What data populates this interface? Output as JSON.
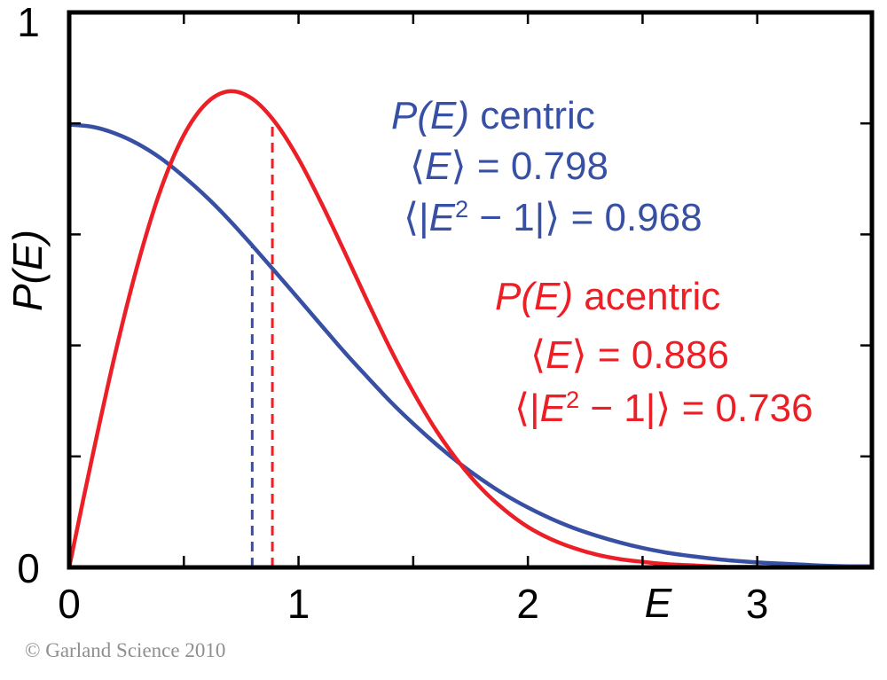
{
  "figure": {
    "copyright": "© Garland Science 2010",
    "copyright_color": "#8f8f8f",
    "background_color": "#ffffff",
    "frame_color": "#000000"
  },
  "chart_data": {
    "type": "line",
    "title": "",
    "xlabel": "E",
    "ylabel": "P(E)",
    "xlim": [
      0,
      3.5
    ],
    "ylim": [
      0,
      1
    ],
    "grid": false,
    "legend": "none (inline colored annotations)",
    "x_tick_labels": [
      {
        "value": 0,
        "label": "0"
      },
      {
        "value": 1,
        "label": "1"
      },
      {
        "value": 2,
        "label": "2"
      },
      {
        "value": 3,
        "label": "3"
      }
    ],
    "y_tick_labels": [
      {
        "value": 0,
        "label": "0"
      },
      {
        "value": 1,
        "label": "1"
      }
    ],
    "x_minor_ticks": [
      0.5,
      1.0,
      1.5,
      2.0,
      2.5,
      3.0
    ],
    "y_minor_ticks": [
      0.2,
      0.4,
      0.6,
      0.8
    ],
    "x": [
      0,
      0.1,
      0.2,
      0.3,
      0.4,
      0.5,
      0.6,
      0.7,
      0.8,
      0.9,
      1.0,
      1.1,
      1.2,
      1.3,
      1.4,
      1.5,
      1.6,
      1.7,
      1.8,
      1.9,
      2.0,
      2.1,
      2.2,
      2.3,
      2.4,
      2.5,
      2.6,
      2.7,
      2.8,
      2.9,
      3.0,
      3.1,
      3.2,
      3.3,
      3.4,
      3.5
    ],
    "series": [
      {
        "name": "P(E) centric",
        "color": "#3850a3",
        "values": [
          0.798,
          0.794,
          0.782,
          0.763,
          0.737,
          0.704,
          0.667,
          0.625,
          0.579,
          0.532,
          0.484,
          0.436,
          0.388,
          0.343,
          0.299,
          0.259,
          0.222,
          0.188,
          0.158,
          0.131,
          0.108,
          0.088,
          0.071,
          0.057,
          0.045,
          0.035,
          0.027,
          0.021,
          0.016,
          0.012,
          0.009,
          0.007,
          0.005,
          0.003,
          0.002,
          0.002
        ],
        "mean_E": 0.798,
        "mean_abs_E2_minus_1": 0.968
      },
      {
        "name": "P(E) acentric",
        "color": "#ec1f27",
        "values": [
          0,
          0.198,
          0.384,
          0.548,
          0.682,
          0.779,
          0.837,
          0.858,
          0.844,
          0.801,
          0.736,
          0.656,
          0.569,
          0.48,
          0.394,
          0.316,
          0.247,
          0.189,
          0.141,
          0.103,
          0.073,
          0.051,
          0.035,
          0.023,
          0.015,
          0.01,
          0.006,
          0.004,
          0.002,
          0.001,
          0.001,
          0,
          0,
          0,
          0,
          0
        ],
        "mean_E": 0.886,
        "mean_abs_E2_minus_1": 0.736
      }
    ],
    "mean_markers": [
      {
        "series": "centric",
        "x": 0.798,
        "y_top": 0.58,
        "color": "#3850a3",
        "style": "dashed"
      },
      {
        "series": "acentric",
        "x": 0.886,
        "y_top": 0.808,
        "color": "#ec1f27",
        "style": "dashed"
      }
    ]
  },
  "annotations": {
    "centric": {
      "color": "#3850a3",
      "title_math": "P(E)",
      "title_rest": " centric",
      "mean_open": "⟨",
      "mean_var": "E",
      "mean_rest": "⟩ = 0.798",
      "e2_open": "⟨|",
      "e2_var": "E",
      "e2_sup": "2",
      "e2_rest": " − 1|⟩ = 0.968"
    },
    "acentric": {
      "color": "#ec1f27",
      "title_math": "P(E)",
      "title_rest": " acentric",
      "mean_open": "⟨",
      "mean_var": "E",
      "mean_rest": "⟩ = 0.886",
      "e2_open": "⟨|",
      "e2_var": "E",
      "e2_sup": "2",
      "e2_rest": " − 1|⟩ = 0.736"
    }
  }
}
